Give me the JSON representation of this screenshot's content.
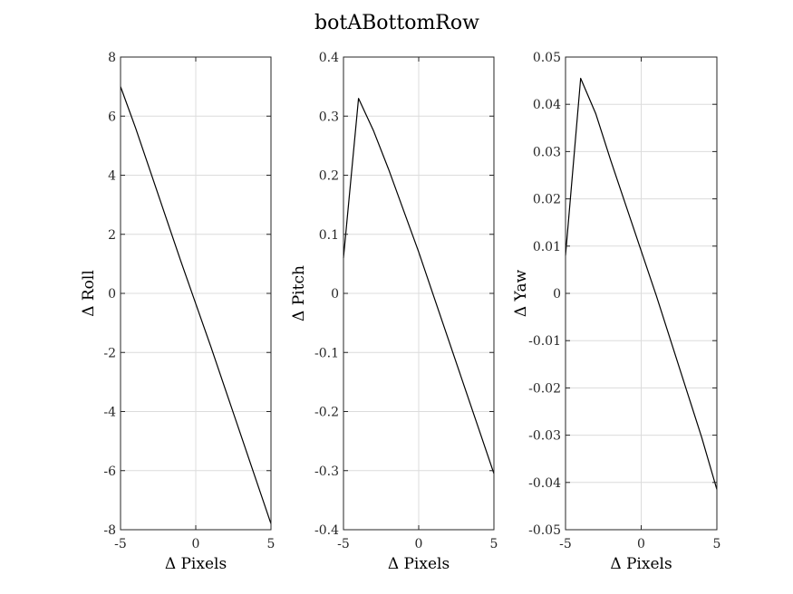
{
  "chart_data": {
    "title": "botABottomRow",
    "type": "line",
    "panels": [
      {
        "name": "roll",
        "xlabel": "Δ Pixels",
        "ylabel": "Δ Roll",
        "xlim": [
          -5,
          5
        ],
        "ylim": [
          -8,
          8
        ],
        "xticks": [
          -5,
          0,
          5
        ],
        "xtick_labels": [
          "-5",
          "0",
          "5"
        ],
        "yticks": [
          -8,
          -6,
          -4,
          -2,
          0,
          2,
          4,
          6,
          8
        ],
        "ytick_labels": [
          "-8",
          "-6",
          "-4",
          "-2",
          "0",
          "2",
          "4",
          "6",
          "8"
        ],
        "grid": true,
        "x": [
          -5,
          -4,
          -3,
          -2,
          -1,
          0,
          1,
          2,
          3,
          4,
          5
        ],
        "y": [
          7.0,
          5.6,
          4.1,
          2.6,
          1.1,
          -0.35,
          -1.8,
          -3.3,
          -4.8,
          -6.3,
          -7.8
        ]
      },
      {
        "name": "pitch",
        "xlabel": "Δ Pixels",
        "ylabel": "Δ Pitch",
        "xlim": [
          -5,
          5
        ],
        "ylim": [
          -0.4,
          0.4
        ],
        "xticks": [
          -5,
          0,
          5
        ],
        "xtick_labels": [
          "-5",
          "0",
          "5"
        ],
        "yticks": [
          -0.4,
          -0.3,
          -0.2,
          -0.1,
          0,
          0.1,
          0.2,
          0.3,
          0.4
        ],
        "ytick_labels": [
          "-0.4",
          "-0.3",
          "-0.2",
          "-0.1",
          "0",
          "0.1",
          "0.2",
          "0.3",
          "0.4"
        ],
        "grid": true,
        "x": [
          -5,
          -4,
          -3,
          -2,
          -1,
          0,
          1,
          2,
          3,
          4,
          5
        ],
        "y": [
          0.06,
          0.33,
          0.275,
          0.21,
          0.14,
          0.07,
          -0.005,
          -0.08,
          -0.155,
          -0.23,
          -0.305
        ]
      },
      {
        "name": "yaw",
        "xlabel": "Δ Pixels",
        "ylabel": "Δ Yaw",
        "xlim": [
          -5,
          5
        ],
        "ylim": [
          -0.05,
          0.05
        ],
        "xticks": [
          -5,
          0,
          5
        ],
        "xtick_labels": [
          "-5",
          "0",
          "5"
        ],
        "yticks": [
          -0.05,
          -0.04,
          -0.03,
          -0.02,
          -0.01,
          0,
          0.01,
          0.02,
          0.03,
          0.04,
          0.05
        ],
        "ytick_labels": [
          "-0.05",
          "-0.04",
          "-0.03",
          "-0.02",
          "-0.01",
          "0",
          "0.01",
          "0.02",
          "0.03",
          "0.04",
          "0.05"
        ],
        "grid": true,
        "x": [
          -5,
          -4,
          -3,
          -2,
          -1,
          0,
          1,
          2,
          3,
          4,
          5
        ],
        "y": [
          0.008,
          0.0455,
          0.038,
          0.028,
          0.0185,
          0.009,
          -0.0005,
          -0.0105,
          -0.0205,
          -0.0305,
          -0.0415
        ]
      }
    ]
  }
}
